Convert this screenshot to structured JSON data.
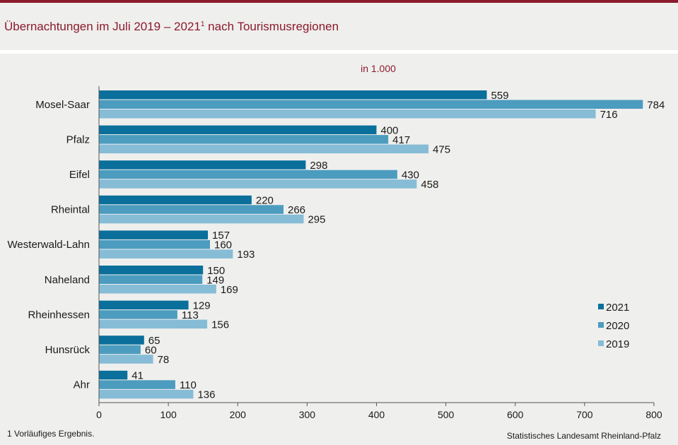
{
  "header": {
    "title_main": "Übernachtungen im Juli 2019 – 2021",
    "title_sup": "1",
    "title_rest": " nach Tourismusregionen"
  },
  "footer": {
    "footnote": "1 Vorläufiges  Ergebnis.",
    "source": "Statistisches Landesamt  Rheinland-Pfalz"
  },
  "chart_data": {
    "type": "bar",
    "orientation": "horizontal",
    "unit_label": "in 1.000",
    "categories": [
      "Mosel-Saar",
      "Pfalz",
      "Eifel",
      "Rheintal",
      "Westerwald-Lahn",
      "Naheland",
      "Rheinhessen",
      "Hunsrück",
      "Ahr"
    ],
    "series": [
      {
        "name": "2021",
        "color": "#0a6f9a",
        "values": [
          559,
          400,
          298,
          220,
          157,
          150,
          129,
          65,
          41
        ]
      },
      {
        "name": "2020",
        "color": "#4c9cbf",
        "values": [
          784,
          417,
          430,
          266,
          160,
          149,
          113,
          60,
          110
        ]
      },
      {
        "name": "2019",
        "color": "#86bcd6",
        "values": [
          716,
          475,
          458,
          295,
          193,
          169,
          156,
          78,
          136
        ]
      }
    ],
    "xlim": [
      0,
      800
    ],
    "xticks": [
      0,
      100,
      200,
      300,
      400,
      500,
      600,
      700,
      800
    ],
    "legend_position": "right",
    "grid": false
  }
}
